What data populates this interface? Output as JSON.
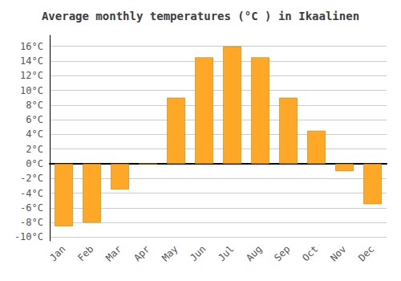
{
  "chart_data": {
    "type": "bar",
    "title": "Average monthly temperatures (°C ) in Ikaalinen",
    "categories": [
      "Jan",
      "Feb",
      "Mar",
      "Apr",
      "May",
      "Jun",
      "Jul",
      "Aug",
      "Sep",
      "Oct",
      "Nov",
      "Dec"
    ],
    "values": [
      -8.5,
      -8.0,
      -3.5,
      0.0,
      9.0,
      14.5,
      16.0,
      14.5,
      9.0,
      4.5,
      -1.0,
      -5.5
    ],
    "color": "#FFA726",
    "ylim": [
      -10.5,
      17.5
    ],
    "yticks": [
      {
        "value": -10,
        "label": "-10°C"
      },
      {
        "value": -8,
        "label": "-8°C"
      },
      {
        "value": -6,
        "label": "-6°C"
      },
      {
        "value": -4,
        "label": "-4°C"
      },
      {
        "value": -2,
        "label": "-2°C"
      },
      {
        "value": 0,
        "label": "0°C"
      },
      {
        "value": 2,
        "label": "2°C"
      },
      {
        "value": 4,
        "label": "4°C"
      },
      {
        "value": 6,
        "label": "6°C"
      },
      {
        "value": 8,
        "label": "8°C"
      },
      {
        "value": 10,
        "label": "10°C"
      },
      {
        "value": 12,
        "label": "12°C"
      },
      {
        "value": 14,
        "label": "14°C"
      },
      {
        "value": 16,
        "label": "16°C"
      }
    ],
    "grid": true
  }
}
